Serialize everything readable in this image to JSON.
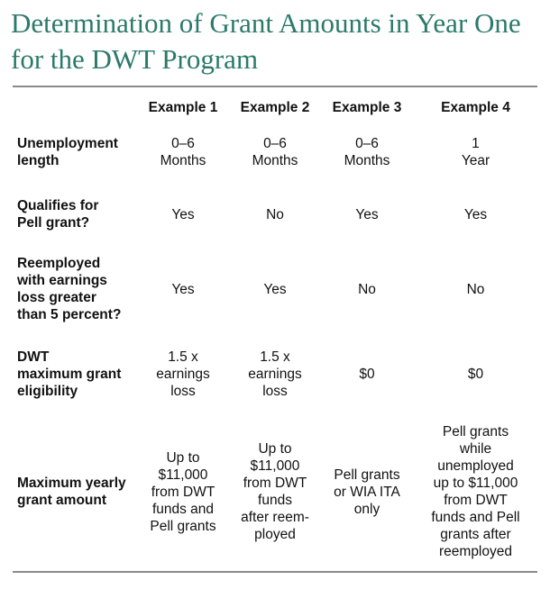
{
  "title": "Determination of Grant Amounts in Year One for the DWT Program",
  "columns": [
    "Example 1",
    "Example 2",
    "Example 3",
    "Example 4"
  ],
  "rows": [
    {
      "label": "Unemployment\nlength",
      "values": [
        "0–6\nMonths",
        "0–6\nMonths",
        "0–6\nMonths",
        "1\nYear"
      ]
    },
    {
      "label": "Qualifies for\nPell grant?",
      "values": [
        "Yes",
        "No",
        "Yes",
        "Yes"
      ]
    },
    {
      "label": "Reemployed\nwith earnings\nloss greater\nthan 5 percent?",
      "values": [
        "Yes",
        "Yes",
        "No",
        "No"
      ]
    },
    {
      "label": "DWT\nmaximum grant\neligibility",
      "values": [
        "1.5 x\nearnings\nloss",
        "1.5 x\nearnings\nloss",
        "$0",
        "$0"
      ]
    },
    {
      "label": "Maximum yearly\ngrant amount",
      "values": [
        "Up to\n$11,000\nfrom DWT\nfunds and\nPell grants",
        "Up to\n$11,000\nfrom DWT\nfunds\nafter reem-\nployed",
        "Pell grants\nor WIA ITA\nonly",
        "Pell grants\nwhile\nunemployed\nup to $11,000\nfrom DWT\nfunds and Pell\ngrants after\nreemployed"
      ]
    }
  ]
}
